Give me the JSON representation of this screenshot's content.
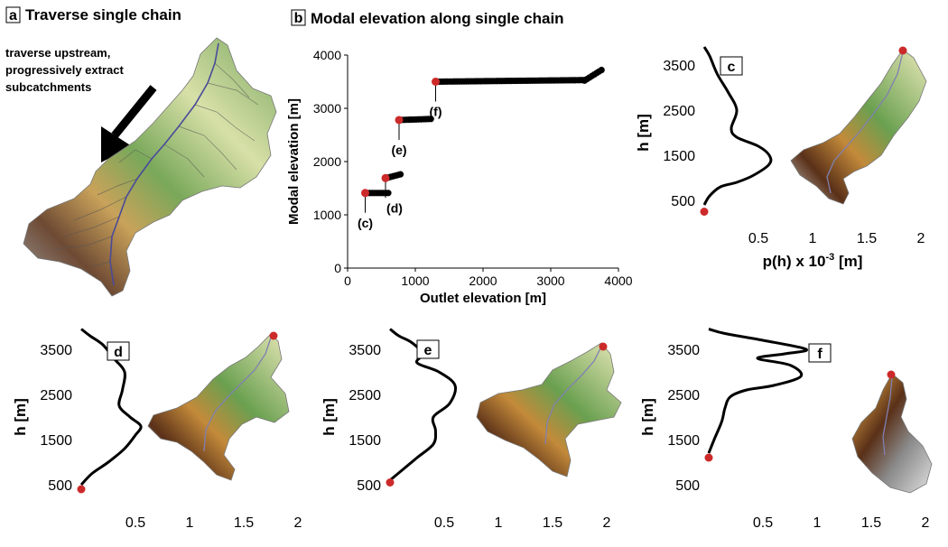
{
  "panels": {
    "a": {
      "letter": "a",
      "title": "Traverse single chain",
      "note": [
        "traverse upstream,",
        "progressively extract",
        "subcatchments"
      ]
    },
    "b": {
      "letter": "b",
      "title": "Modal elevation along single chain"
    },
    "c": {
      "letter": "c"
    },
    "d": {
      "letter": "d"
    },
    "e": {
      "letter": "e"
    },
    "f": {
      "letter": "f"
    }
  },
  "colors": {
    "points": "#000000",
    "highlight": "#cc2a2a",
    "river": "#4a4a9a",
    "terrain": [
      "#8a8a8a",
      "#5a3018",
      "#c9a050",
      "#6aa050",
      "#e8e8b0"
    ]
  },
  "chart_data": [
    {
      "id": "b",
      "type": "scatter",
      "xlabel": "Outlet elevation [m]",
      "ylabel": "Modal elevation [m]",
      "xlim": [
        0,
        4000
      ],
      "ylim": [
        0,
        4000
      ],
      "xticks": [
        0,
        1000,
        2000,
        3000,
        4000
      ],
      "yticks": [
        0,
        1000,
        2000,
        3000,
        4000
      ],
      "segments": [
        {
          "x": [
            260,
            600
          ],
          "y": [
            1410,
            1410
          ]
        },
        {
          "x": [
            600,
            780
          ],
          "y": [
            1700,
            1760
          ]
        },
        {
          "x": [
            760,
            1230
          ],
          "y": [
            2780,
            2800
          ]
        },
        {
          "x": [
            1300,
            3500
          ],
          "y": [
            3500,
            3530
          ]
        },
        {
          "x": [
            3500,
            3750
          ],
          "y": [
            3520,
            3720
          ]
        }
      ],
      "highlights": [
        {
          "label": "(c)",
          "x": 260,
          "y": 1410
        },
        {
          "label": "(d)",
          "x": 560,
          "y": 1690
        },
        {
          "label": "(e)",
          "x": 760,
          "y": 2780
        },
        {
          "label": "(f)",
          "x": 1300,
          "y": 3500
        }
      ]
    },
    {
      "id": "c",
      "type": "line",
      "xlabel": "p(h) x 10",
      "xlabel_sup": "-3",
      "xlabel_unit": " [m]",
      "ylabel": "h [m]",
      "xlim": [
        0,
        2.0
      ],
      "ylim": [
        0,
        4000
      ],
      "xticks": [
        0.5,
        1.0,
        1.5,
        2.0
      ],
      "yticks": [
        500,
        1500,
        2500,
        3500
      ],
      "outlet": {
        "x": 0,
        "y": 250
      },
      "pdf": {
        "x": [
          0,
          0.05,
          0.15,
          0.3,
          0.45,
          0.6,
          0.6,
          0.5,
          0.3,
          0.25,
          0.3,
          0.22,
          0.12,
          0.05,
          0.0
        ],
        "y": [
          400,
          600,
          800,
          900,
          1050,
          1300,
          1500,
          1700,
          1900,
          2100,
          2500,
          2900,
          3300,
          3700,
          3900
        ]
      }
    },
    {
      "id": "d",
      "type": "line",
      "ylabel": "h [m]",
      "xlim": [
        0,
        2.0
      ],
      "ylim": [
        0,
        4000
      ],
      "xticks": [
        0.5,
        1.0,
        1.5,
        2.0
      ],
      "yticks": [
        500,
        1500,
        2500,
        3500
      ],
      "outlet": {
        "x": 0,
        "y": 400
      },
      "pdf": {
        "x": [
          0,
          0.1,
          0.25,
          0.4,
          0.5,
          0.55,
          0.45,
          0.35,
          0.38,
          0.4,
          0.3,
          0.2,
          0.08,
          0.0
        ],
        "y": [
          500,
          750,
          1000,
          1300,
          1600,
          1800,
          2000,
          2250,
          2600,
          3000,
          3300,
          3600,
          3800,
          3950
        ]
      }
    },
    {
      "id": "e",
      "type": "line",
      "ylabel": "h [m]",
      "xlim": [
        0,
        2.0
      ],
      "ylim": [
        0,
        4000
      ],
      "xticks": [
        0.5,
        1.0,
        1.5,
        2.0
      ],
      "yticks": [
        500,
        1500,
        2500,
        3500
      ],
      "outlet": {
        "x": 0,
        "y": 550
      },
      "pdf": {
        "x": [
          0,
          0.1,
          0.25,
          0.4,
          0.42,
          0.4,
          0.55,
          0.6,
          0.45,
          0.25,
          0.3,
          0.2,
          0.08,
          0.0
        ],
        "y": [
          600,
          800,
          1100,
          1400,
          1700,
          2000,
          2300,
          2700,
          3000,
          3200,
          3400,
          3650,
          3800,
          3950
        ]
      }
    },
    {
      "id": "f",
      "type": "line",
      "ylabel": "h [m]",
      "xlim": [
        0,
        2.0
      ],
      "ylim": [
        0,
        4000
      ],
      "xticks": [
        0.5,
        1.0,
        1.5,
        2.0
      ],
      "yticks": [
        1500,
        2500,
        3500
      ],
      "xtick_labels": [
        "0.5",
        "1.0",
        "1.5",
        "2.0"
      ],
      "yticks_all": [
        500,
        1500,
        2500,
        3500
      ],
      "outlet": {
        "x": 0,
        "y": 1100
      },
      "pdf": {
        "x": [
          0,
          0.05,
          0.12,
          0.15,
          0.2,
          0.35,
          0.6,
          0.85,
          0.75,
          0.45,
          0.7,
          0.9,
          0.5,
          0.15,
          0.0
        ],
        "y": [
          1200,
          1500,
          1900,
          2200,
          2450,
          2600,
          2700,
          2900,
          3150,
          3300,
          3400,
          3500,
          3700,
          3850,
          3950
        ]
      }
    }
  ]
}
